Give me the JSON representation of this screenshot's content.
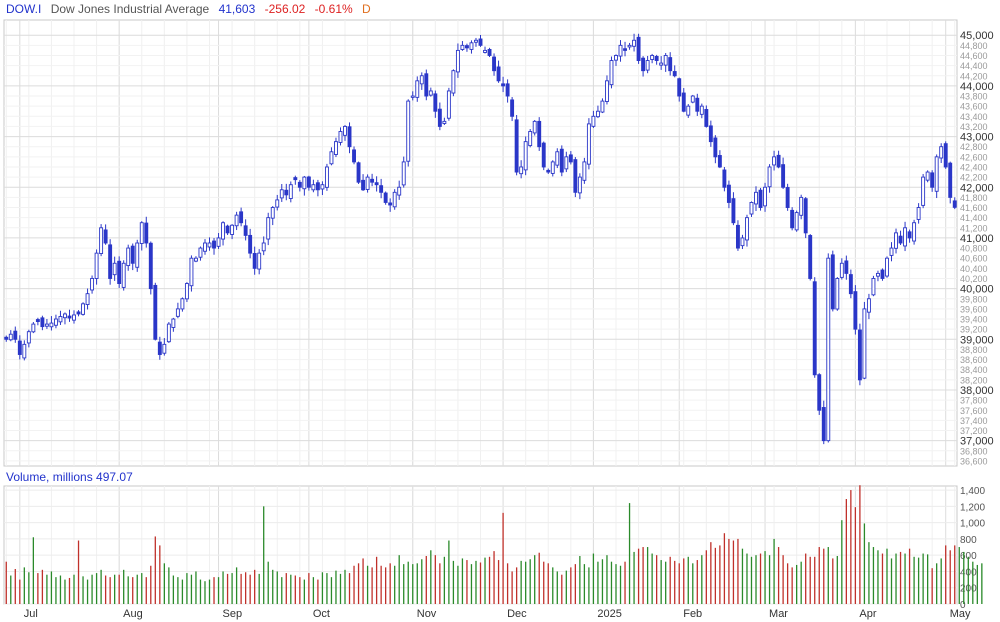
{
  "header": {
    "symbol": "DOW.I",
    "name": "Dow Jones Industrial Average",
    "last": "41,603",
    "change": "-256.02",
    "change_pct": "-0.61%",
    "period": "D"
  },
  "volume_header": "Volume, millions 497.07",
  "chart_data": [
    {
      "type": "candlestick",
      "title": "Dow Jones Industrial Average",
      "ylim": [
        36500,
        45300
      ],
      "y_major_ticks": [
        37000,
        38000,
        39000,
        40000,
        41000,
        42000,
        43000,
        44000,
        45000
      ],
      "y_major_labels": [
        "37,000",
        "38,000",
        "39,000",
        "40,000",
        "41,000",
        "42,000",
        "43,000",
        "44,000",
        "45,000"
      ],
      "y_minor_ticks": [
        36600,
        36800,
        37200,
        37400,
        37600,
        37800,
        38200,
        38400,
        38600,
        38800,
        39200,
        39400,
        39600,
        39800,
        40200,
        40400,
        40600,
        40800,
        41200,
        41400,
        41600,
        41800,
        42200,
        42400,
        42600,
        42800,
        43200,
        43400,
        43600,
        43800,
        44200,
        44400,
        44600,
        44800
      ],
      "y_minor_labels": [
        "36,600",
        "36,800",
        "37,200",
        "37,400",
        "37,600",
        "37,800",
        "38,200",
        "38,400",
        "38,600",
        "38,800",
        "39,200",
        "39,400",
        "39,600",
        "39,800",
        "40,200",
        "40,400",
        "40,600",
        "40,800",
        "41,200",
        "41,400",
        "41,600",
        "41,800",
        "42,200",
        "42,400",
        "42,600",
        "42,800",
        "43,200",
        "43,400",
        "43,600",
        "43,800",
        "44,200",
        "44,400",
        "44,600",
        "44,800"
      ],
      "x_months": [
        "Jul",
        "Aug",
        "Sep",
        "Oct",
        "Nov",
        "Dec",
        "2025",
        "Feb",
        "Mar",
        "Apr",
        "May"
      ],
      "month_start_index": [
        3,
        25,
        47,
        67,
        90,
        110,
        130,
        149,
        168,
        188,
        208
      ],
      "grid": true,
      "up_color": "#2a36c8",
      "down_color": "#2a36c8",
      "close_path": [
        39000,
        39100,
        39000,
        38700,
        38900,
        39150,
        39300,
        39350,
        39250,
        39300,
        39320,
        39400,
        39450,
        39500,
        39420,
        39480,
        39500,
        39700,
        39900,
        40200,
        40700,
        41200,
        40900,
        40200,
        40500,
        40100,
        40500,
        40800,
        40500,
        40900,
        41300,
        40900,
        40000,
        39000,
        38700,
        38900,
        39300,
        39400,
        39600,
        39800,
        40100,
        40600,
        40600,
        40800,
        40900,
        40900,
        40800,
        41000,
        41300,
        41100,
        41250,
        41450,
        41300,
        41050,
        40700,
        40400,
        40700,
        40900,
        41400,
        41600,
        41750,
        41950,
        41850,
        42050,
        42150,
        42000,
        42200,
        42000,
        42050,
        41950,
        42050,
        42400,
        42700,
        42900,
        43100,
        43200,
        42800,
        42500,
        42100,
        41950,
        42200,
        42100,
        42050,
        41900,
        41700,
        41650,
        41900,
        42000,
        42500,
        43700,
        43800,
        44100,
        44200,
        43800,
        43900,
        43500,
        43200,
        43300,
        43900,
        44300,
        44700,
        44800,
        44750,
        44850,
        44900,
        44800,
        44700,
        44600,
        44300,
        44100,
        44000,
        43800,
        43400,
        42300,
        42400,
        42900,
        43100,
        43300,
        42800,
        42400,
        42300,
        42500,
        42700,
        42300,
        42600,
        42500,
        41900,
        42200,
        42500,
        43250,
        43400,
        43500,
        43700,
        44100,
        44500,
        44600,
        44800,
        44700,
        44800,
        44900,
        44500,
        44300,
        44500,
        44600,
        44500,
        44450,
        44600,
        44300,
        44200,
        43800,
        43500,
        43600,
        43800,
        43500,
        43600,
        43200,
        42900,
        42600,
        42400,
        42000,
        41700,
        41300,
        40800,
        41000,
        41400,
        41700,
        41900,
        41600,
        42000,
        42400,
        42600,
        42400,
        42000,
        41600,
        41200,
        41500,
        41800,
        41100,
        40200,
        38300,
        37600,
        37000,
        40600,
        39600,
        40200,
        40500,
        40300,
        39900,
        39200,
        38200,
        39600,
        39800,
        40200,
        40300,
        40200,
        40600,
        40800,
        41100,
        40900,
        41200,
        41000,
        41300,
        41600,
        42200,
        42300,
        42000,
        42600,
        42800,
        42400,
        41800,
        41603
      ]
    },
    {
      "type": "bar",
      "title": "Volume, millions",
      "ylim": [
        0,
        1450
      ],
      "y_ticks": [
        0,
        200,
        400,
        600,
        800,
        1000,
        1200,
        1400
      ],
      "y_tick_labels": [
        "0",
        "200",
        "400",
        "600",
        "800",
        "1,000",
        "1,200",
        "1,400"
      ],
      "up_color": "#2a8a2a",
      "down_color": "#c0302a",
      "values": [
        520,
        350,
        430,
        300,
        450,
        390,
        820,
        380,
        420,
        360,
        400,
        330,
        350,
        300,
        320,
        360,
        780,
        340,
        300,
        360,
        380,
        420,
        350,
        330,
        360,
        360,
        420,
        340,
        330,
        360,
        380,
        330,
        470,
        830,
        720,
        500,
        450,
        350,
        330,
        300,
        380,
        360,
        400,
        300,
        280,
        300,
        330,
        330,
        400,
        370,
        380,
        450,
        370,
        390,
        360,
        420,
        370,
        1200,
        520,
        420,
        400,
        330,
        380,
        360,
        350,
        330,
        300,
        380,
        330,
        300,
        390,
        380,
        330,
        410,
        370,
        420,
        380,
        470,
        500,
        560,
        470,
        450,
        580,
        470,
        450,
        500,
        470,
        600,
        490,
        520,
        490,
        500,
        550,
        590,
        660,
        600,
        500,
        580,
        780,
        530,
        470,
        560,
        540,
        490,
        530,
        510,
        570,
        580,
        650,
        540,
        1120,
        500,
        400,
        450,
        530,
        520,
        550,
        600,
        630,
        520,
        500,
        450,
        400,
        360,
        410,
        450,
        490,
        590,
        490,
        450,
        620,
        520,
        550,
        600,
        520,
        490,
        470,
        520,
        1240,
        640,
        680,
        700,
        700,
        620,
        600,
        540,
        520,
        580,
        530,
        500,
        560,
        580,
        500,
        540,
        600,
        660,
        760,
        690,
        720,
        870,
        800,
        780,
        800,
        680,
        620,
        580,
        600,
        620,
        650,
        600,
        800,
        700,
        600,
        500,
        450,
        480,
        520,
        620,
        580,
        580,
        700,
        680,
        700,
        560,
        590,
        1030,
        1290,
        1400,
        1190,
        1460,
        990,
        760,
        700,
        660,
        620,
        680,
        560,
        620,
        640,
        620,
        680,
        580,
        570,
        620,
        610,
        440,
        500,
        560,
        720,
        660,
        720,
        700,
        640,
        580,
        520,
        480,
        500
      ]
    }
  ]
}
